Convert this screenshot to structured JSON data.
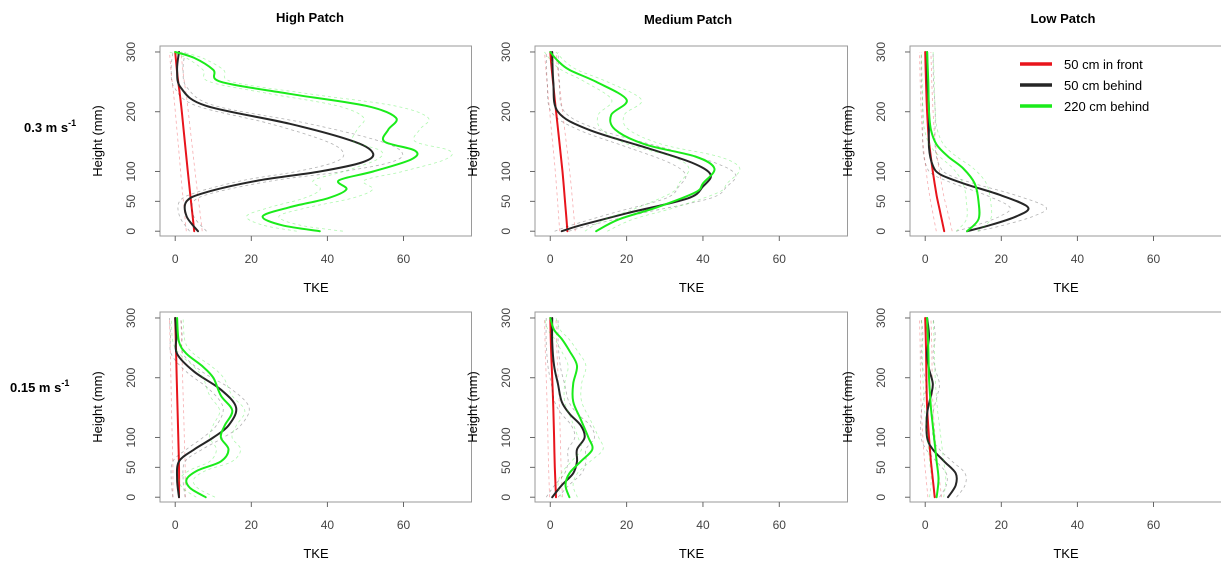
{
  "figure": {
    "column_titles": [
      "High Patch",
      "Medium Patch",
      "Low Patch"
    ],
    "row_titles": [
      {
        "text": "0.3 m s",
        "sup": "-1"
      },
      {
        "text": "0.15 m s",
        "sup": "-1"
      }
    ],
    "legend": [
      {
        "label": "50 cm in front",
        "color": "#e8141c"
      },
      {
        "label": "50 cm behind",
        "color": "#262626"
      },
      {
        "label": "220 cm behind",
        "color": "#1aeb1a"
      }
    ]
  },
  "chart_data": [
    {
      "type": "line",
      "title": "High Patch",
      "row": "0.3 m s-1",
      "xlabel": "TKE",
      "ylabel": "Height (mm)",
      "xlim": [
        -4,
        78
      ],
      "ylim": [
        -8,
        310
      ],
      "xticks": [
        0,
        20,
        40,
        60
      ],
      "yticks": [
        0,
        50,
        100,
        200,
        300
      ],
      "series": [
        {
          "name": "50 cm in front",
          "color": "#e8141c",
          "points": [
            [
              5,
              0
            ],
            [
              4.5,
              30
            ],
            [
              3.8,
              70
            ],
            [
              3,
              120
            ],
            [
              2.2,
              170
            ],
            [
              1.4,
              220
            ],
            [
              0.6,
              260
            ],
            [
              0,
              300
            ]
          ]
        },
        {
          "name": "50 cm behind",
          "color": "#262626",
          "points": [
            [
              6,
              0
            ],
            [
              3,
              25
            ],
            [
              3,
              50
            ],
            [
              8,
              65
            ],
            [
              22,
              85
            ],
            [
              38,
              100
            ],
            [
              49,
              115
            ],
            [
              52,
              130
            ],
            [
              47,
              150
            ],
            [
              30,
              180
            ],
            [
              8,
              210
            ],
            [
              1.5,
              240
            ],
            [
              0.5,
              270
            ],
            [
              1,
              300
            ]
          ]
        },
        {
          "name": "220 cm behind",
          "color": "#1aeb1a",
          "points": [
            [
              38,
              0
            ],
            [
              28,
              10
            ],
            [
              23,
              25
            ],
            [
              30,
              40
            ],
            [
              40,
              55
            ],
            [
              45,
              70
            ],
            [
              43,
              85
            ],
            [
              52,
              100
            ],
            [
              62,
              120
            ],
            [
              63,
              135
            ],
            [
              55,
              150
            ],
            [
              56,
              170
            ],
            [
              58,
              190
            ],
            [
              50,
              210
            ],
            [
              30,
              230
            ],
            [
              12,
              250
            ],
            [
              10,
              270
            ],
            [
              5,
              290
            ],
            [
              0,
              300
            ]
          ]
        }
      ]
    },
    {
      "type": "line",
      "title": "Medium Patch",
      "row": "0.3 m s-1",
      "xlabel": "TKE",
      "ylabel": "Height (mm)",
      "xlim": [
        -4,
        78
      ],
      "ylim": [
        -8,
        310
      ],
      "xticks": [
        0,
        20,
        40,
        60
      ],
      "yticks": [
        0,
        50,
        100,
        200,
        300
      ],
      "series": [
        {
          "name": "50 cm in front",
          "color": "#e8141c",
          "points": [
            [
              4.5,
              0
            ],
            [
              4,
              40
            ],
            [
              3.2,
              100
            ],
            [
              2.2,
              160
            ],
            [
              1.2,
              220
            ],
            [
              0.4,
              270
            ],
            [
              0,
              300
            ]
          ]
        },
        {
          "name": "50 cm behind",
          "color": "#262626",
          "points": [
            [
              3,
              0
            ],
            [
              8,
              10
            ],
            [
              20,
              30
            ],
            [
              36,
              55
            ],
            [
              40,
              75
            ],
            [
              42,
              95
            ],
            [
              37,
              115
            ],
            [
              25,
              140
            ],
            [
              10,
              170
            ],
            [
              2,
              200
            ],
            [
              0.8,
              250
            ],
            [
              0.5,
              300
            ]
          ]
        },
        {
          "name": "220 cm behind",
          "color": "#1aeb1a",
          "points": [
            [
              12,
              0
            ],
            [
              18,
              20
            ],
            [
              28,
              40
            ],
            [
              38,
              65
            ],
            [
              40,
              80
            ],
            [
              43,
              105
            ],
            [
              38,
              125
            ],
            [
              25,
              145
            ],
            [
              17,
              170
            ],
            [
              16,
              195
            ],
            [
              20,
              220
            ],
            [
              12,
              250
            ],
            [
              5,
              270
            ],
            [
              2,
              285
            ],
            [
              0,
              300
            ]
          ]
        }
      ]
    },
    {
      "type": "line",
      "title": "Low Patch",
      "row": "0.3 m s-1",
      "xlabel": "TKE",
      "ylabel": "Height (mm)",
      "xlim": [
        -4,
        78
      ],
      "ylim": [
        -8,
        310
      ],
      "xticks": [
        0,
        20,
        40,
        60
      ],
      "yticks": [
        0,
        50,
        100,
        200,
        300
      ],
      "series": [
        {
          "name": "50 cm in front",
          "color": "#e8141c",
          "points": [
            [
              5,
              0
            ],
            [
              4,
              30
            ],
            [
              3,
              60
            ],
            [
              2,
              100
            ],
            [
              1,
              150
            ],
            [
              0.5,
              200
            ],
            [
              0.2,
              250
            ],
            [
              0,
              300
            ]
          ]
        },
        {
          "name": "50 cm behind",
          "color": "#262626",
          "points": [
            [
              11,
              0
            ],
            [
              17,
              10
            ],
            [
              24,
              25
            ],
            [
              27,
              40
            ],
            [
              20,
              60
            ],
            [
              10,
              80
            ],
            [
              4,
              95
            ],
            [
              2,
              110
            ],
            [
              1,
              140
            ],
            [
              1,
              200
            ],
            [
              0.6,
              250
            ],
            [
              0.5,
              300
            ]
          ]
        },
        {
          "name": "220 cm behind",
          "color": "#1aeb1a",
          "points": [
            [
              11,
              0
            ],
            [
              14,
              20
            ],
            [
              14,
              50
            ],
            [
              13,
              80
            ],
            [
              10,
              105
            ],
            [
              6,
              125
            ],
            [
              3,
              145
            ],
            [
              1.5,
              170
            ],
            [
              1,
              200
            ],
            [
              0.8,
              250
            ],
            [
              0.5,
              300
            ]
          ]
        }
      ]
    },
    {
      "type": "line",
      "title": "High Patch",
      "row": "0.15 m s-1",
      "xlabel": "TKE",
      "ylabel": "Height (mm)",
      "xlim": [
        -4,
        78
      ],
      "ylim": [
        -8,
        310
      ],
      "xticks": [
        0,
        20,
        40,
        60
      ],
      "yticks": [
        0,
        50,
        100,
        200,
        300
      ],
      "series": [
        {
          "name": "50 cm in front",
          "color": "#e8141c",
          "points": [
            [
              1,
              0
            ],
            [
              1,
              50
            ],
            [
              0.8,
              100
            ],
            [
              0.6,
              150
            ],
            [
              0.4,
              200
            ],
            [
              0.2,
              250
            ],
            [
              0,
              300
            ]
          ]
        },
        {
          "name": "50 cm behind",
          "color": "#262626",
          "points": [
            [
              1,
              0
            ],
            [
              0.5,
              30
            ],
            [
              1,
              60
            ],
            [
              5,
              80
            ],
            [
              10,
              100
            ],
            [
              14,
              120
            ],
            [
              16,
              150
            ],
            [
              12,
              180
            ],
            [
              5,
              210
            ],
            [
              0.5,
              240
            ],
            [
              0.3,
              270
            ],
            [
              0,
              300
            ]
          ]
        },
        {
          "name": "220 cm behind",
          "color": "#1aeb1a",
          "points": [
            [
              8,
              0
            ],
            [
              4,
              15
            ],
            [
              3,
              30
            ],
            [
              6,
              45
            ],
            [
              12,
              60
            ],
            [
              14,
              80
            ],
            [
              12,
              100
            ],
            [
              13,
              120
            ],
            [
              15,
              145
            ],
            [
              12,
              170
            ],
            [
              10,
              200
            ],
            [
              7,
              220
            ],
            [
              3,
              240
            ],
            [
              1,
              260
            ],
            [
              0.5,
              300
            ]
          ]
        }
      ]
    },
    {
      "type": "line",
      "title": "Medium Patch",
      "row": "0.15 m s-1",
      "xlabel": "TKE",
      "ylabel": "Height (mm)",
      "xlim": [
        -4,
        78
      ],
      "ylim": [
        -8,
        310
      ],
      "xticks": [
        0,
        20,
        40,
        60
      ],
      "yticks": [
        0,
        50,
        100,
        200,
        300
      ],
      "series": [
        {
          "name": "50 cm in front",
          "color": "#e8141c",
          "points": [
            [
              1.5,
              0
            ],
            [
              1.2,
              50
            ],
            [
              1,
              100
            ],
            [
              0.8,
              150
            ],
            [
              0.5,
              200
            ],
            [
              0.2,
              250
            ],
            [
              0,
              300
            ]
          ]
        },
        {
          "name": "50 cm behind",
          "color": "#262626",
          "points": [
            [
              0.5,
              0
            ],
            [
              3,
              20
            ],
            [
              6,
              40
            ],
            [
              7,
              60
            ],
            [
              7,
              80
            ],
            [
              9,
              100
            ],
            [
              8,
              120
            ],
            [
              5,
              140
            ],
            [
              3,
              160
            ],
            [
              2,
              190
            ],
            [
              1,
              220
            ],
            [
              0.5,
              260
            ],
            [
              0.5,
              300
            ]
          ]
        },
        {
          "name": "220 cm behind",
          "color": "#1aeb1a",
          "points": [
            [
              5,
              0
            ],
            [
              4,
              20
            ],
            [
              5,
              40
            ],
            [
              8,
              60
            ],
            [
              11,
              80
            ],
            [
              10,
              100
            ],
            [
              8,
              130
            ],
            [
              6,
              160
            ],
            [
              6,
              190
            ],
            [
              7,
              220
            ],
            [
              5,
              245
            ],
            [
              3,
              265
            ],
            [
              1,
              280
            ],
            [
              0,
              300
            ]
          ]
        }
      ]
    },
    {
      "type": "line",
      "title": "Low Patch",
      "row": "0.15 m s-1",
      "xlabel": "TKE",
      "ylabel": "Height (mm)",
      "xlim": [
        -4,
        78
      ],
      "ylim": [
        -8,
        310
      ],
      "xticks": [
        0,
        20,
        40,
        60
      ],
      "yticks": [
        0,
        50,
        100,
        200,
        300
      ],
      "series": [
        {
          "name": "50 cm in front",
          "color": "#e8141c",
          "points": [
            [
              2.5,
              0
            ],
            [
              2,
              30
            ],
            [
              1.5,
              60
            ],
            [
              1,
              100
            ],
            [
              0.5,
              150
            ],
            [
              0.3,
              200
            ],
            [
              0.2,
              250
            ],
            [
              0,
              300
            ]
          ]
        },
        {
          "name": "50 cm behind",
          "color": "#262626",
          "points": [
            [
              6,
              0
            ],
            [
              8,
              20
            ],
            [
              8,
              40
            ],
            [
              5,
              60
            ],
            [
              2,
              80
            ],
            [
              0.5,
              100
            ],
            [
              0.5,
              140
            ],
            [
              1.5,
              170
            ],
            [
              2,
              190
            ],
            [
              1,
              215
            ],
            [
              0.5,
              240
            ],
            [
              1,
              270
            ],
            [
              0.5,
              300
            ]
          ]
        },
        {
          "name": "220 cm behind",
          "color": "#1aeb1a",
          "points": [
            [
              3,
              0
            ],
            [
              3.5,
              30
            ],
            [
              3,
              60
            ],
            [
              2.5,
              90
            ],
            [
              2,
              120
            ],
            [
              1.5,
              150
            ],
            [
              1,
              200
            ],
            [
              0.8,
              250
            ],
            [
              0.5,
              300
            ]
          ]
        }
      ]
    }
  ]
}
